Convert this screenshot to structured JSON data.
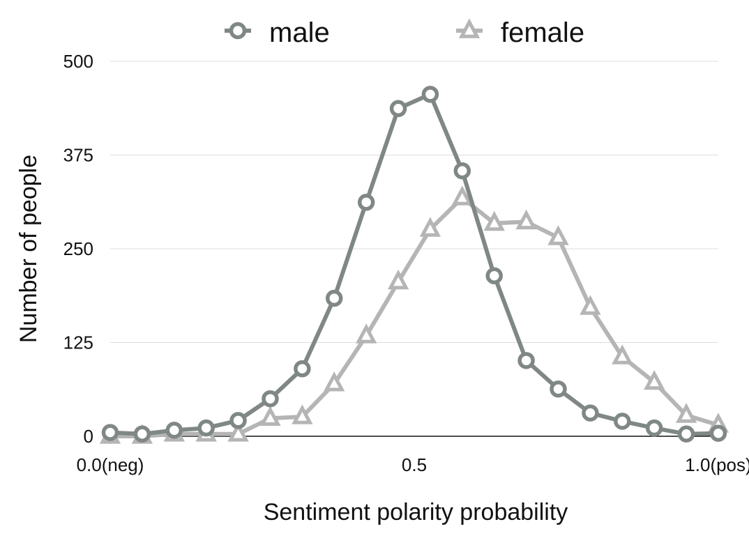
{
  "chart_data": {
    "type": "line",
    "title": "",
    "xlabel": "Sentiment polarity probability",
    "ylabel": "Number of people",
    "xlim": [
      0.0,
      1.0
    ],
    "ylim": [
      0,
      500
    ],
    "yticks": [
      0,
      125,
      250,
      375,
      500
    ],
    "xticks": [
      {
        "value": 0.0,
        "label": "0.0(neg)"
      },
      {
        "value": 0.5,
        "label": "0.5"
      },
      {
        "value": 1.0,
        "label": "1.0(pos)"
      }
    ],
    "grid": "horizontal",
    "legend_position": "top",
    "x": [
      0.0,
      0.0526,
      0.1053,
      0.1579,
      0.2105,
      0.2632,
      0.3158,
      0.3684,
      0.4211,
      0.4737,
      0.5263,
      0.5789,
      0.6316,
      0.6842,
      0.7368,
      0.7895,
      0.8421,
      0.8947,
      0.9474,
      1.0
    ],
    "series": [
      {
        "name": "male",
        "marker": "circle",
        "color": "#808885",
        "values": [
          5,
          3,
          8,
          11,
          21,
          50,
          90,
          184,
          312,
          437,
          456,
          354,
          214,
          101,
          63,
          31,
          20,
          11,
          3,
          4
        ]
      },
      {
        "name": "female",
        "marker": "triangle",
        "color": "#b5b5b5",
        "values": [
          0,
          0,
          3,
          3,
          3,
          24,
          26,
          70,
          134,
          206,
          276,
          318,
          284,
          286,
          265,
          172,
          106,
          72,
          28,
          15
        ]
      }
    ]
  }
}
